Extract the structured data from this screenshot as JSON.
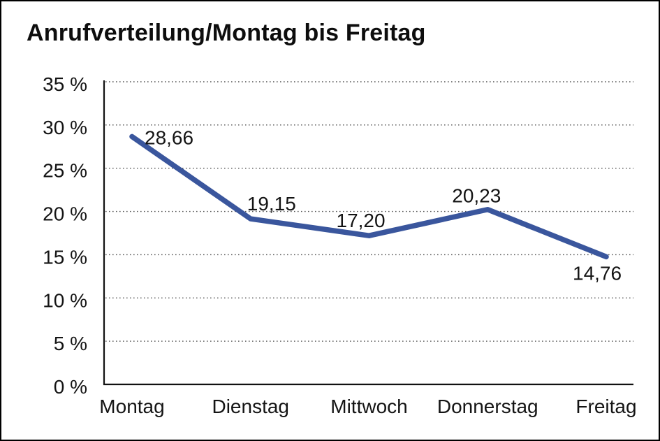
{
  "page": {
    "title": "Anrufverteilung/Montag bis Freitag"
  },
  "chart_data": {
    "type": "line",
    "title": "Anrufverteilung/Montag bis Freitag",
    "categories": [
      "Montag",
      "Dienstag",
      "Mittwoch",
      "Donnerstag",
      "Freitag"
    ],
    "series": [
      {
        "name": "Anrufverteilung",
        "values": [
          28.66,
          19.15,
          17.2,
          20.23,
          14.76
        ]
      }
    ],
    "data_labels": [
      "28,66",
      "19,15",
      "17,20",
      "20,23",
      "14,76"
    ],
    "y_ticks": [
      "0 %",
      "5 %",
      "10 %",
      "15 %",
      "20 %",
      "25 %",
      "30 %",
      "35 %"
    ],
    "ylim": [
      0,
      35
    ],
    "y_tick_step": 5,
    "xlabel": "",
    "ylabel": "",
    "grid": "horizontal-dotted",
    "legend": "none",
    "colors": {
      "line": "#3A569D",
      "axis": "#111111",
      "grid_dots": "#555555",
      "text": "#141414",
      "background": "#FFFFFF"
    }
  }
}
